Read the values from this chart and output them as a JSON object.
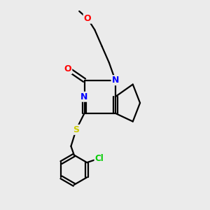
{
  "bg_color": "#ebebeb",
  "atom_colors": {
    "N": "#0000ff",
    "O": "#ff0000",
    "S": "#cccc00",
    "Cl": "#00cc00",
    "C": "#000000"
  },
  "bond_color": "#000000",
  "bond_width": 1.6,
  "figsize": [
    3.0,
    3.0
  ],
  "dpi": 100
}
